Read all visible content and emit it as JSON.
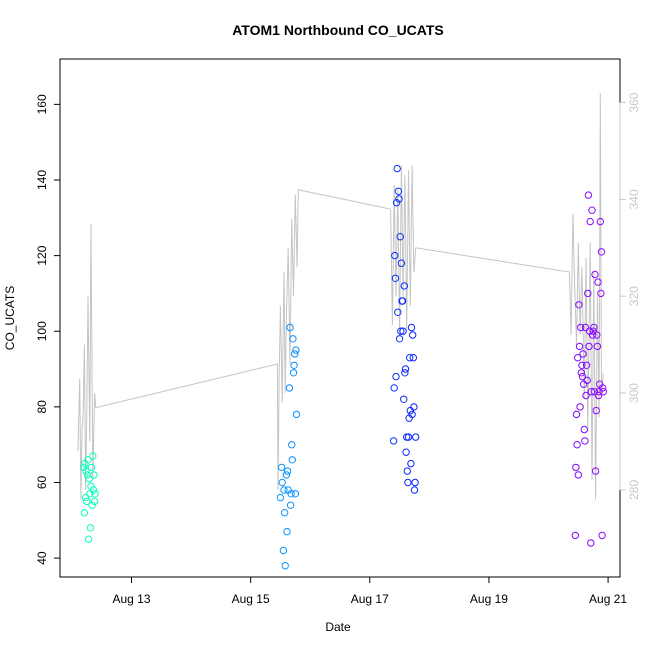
{
  "chart_data": {
    "type": "scatter",
    "title": "ATOM1 Northbound CO_UCATS",
    "xlabel": "Date",
    "ylabel": "CO_UCATS",
    "x_ticks": [
      "Aug 13",
      "Aug 15",
      "Aug 17",
      "Aug 19",
      "Aug 21"
    ],
    "x_tick_days": [
      13,
      15,
      17,
      19,
      21
    ],
    "xlim_days": [
      11.8,
      21.2
    ],
    "ylim": [
      35,
      172
    ],
    "y_ticks": [
      40,
      60,
      80,
      100,
      120,
      140,
      160
    ],
    "y2lim": [
      262,
      369
    ],
    "y2_ticks": [
      280,
      300,
      320,
      340,
      360
    ],
    "grid": false,
    "series": [
      {
        "type": "scatter",
        "axis": "left",
        "points": [
          [
            12.2,
            64
          ],
          [
            12.21,
            52
          ],
          [
            12.22,
            65
          ],
          [
            12.23,
            56
          ],
          [
            12.24,
            63
          ],
          [
            12.25,
            55
          ],
          [
            12.26,
            62
          ],
          [
            12.27,
            66
          ],
          [
            12.28,
            45
          ],
          [
            12.29,
            61
          ],
          [
            12.3,
            57
          ],
          [
            12.31,
            48
          ],
          [
            12.32,
            59
          ],
          [
            12.33,
            64
          ],
          [
            12.34,
            54
          ],
          [
            12.35,
            67
          ],
          [
            12.36,
            58
          ],
          [
            12.37,
            62
          ],
          [
            12.38,
            55
          ],
          [
            12.39,
            57
          ],
          [
            15.5,
            56
          ],
          [
            15.52,
            64
          ],
          [
            15.53,
            60
          ],
          [
            15.55,
            42
          ],
          [
            15.56,
            58
          ],
          [
            15.57,
            52
          ],
          [
            15.58,
            38
          ],
          [
            15.6,
            62
          ],
          [
            15.61,
            47
          ],
          [
            15.62,
            63
          ],
          [
            15.63,
            58
          ],
          [
            15.65,
            85
          ],
          [
            15.66,
            101
          ],
          [
            15.67,
            54
          ],
          [
            15.68,
            57
          ],
          [
            15.69,
            70
          ],
          [
            15.7,
            66
          ],
          [
            15.71,
            98
          ],
          [
            15.72,
            89
          ],
          [
            15.73,
            91
          ],
          [
            15.74,
            94
          ],
          [
            15.75,
            57
          ],
          [
            15.76,
            95
          ],
          [
            15.77,
            78
          ],
          [
            17.4,
            71
          ],
          [
            17.41,
            85
          ],
          [
            17.42,
            120
          ],
          [
            17.43,
            114
          ],
          [
            17.44,
            88
          ],
          [
            17.45,
            134
          ],
          [
            17.46,
            143
          ],
          [
            17.47,
            105
          ],
          [
            17.48,
            137
          ],
          [
            17.49,
            135
          ],
          [
            17.5,
            98
          ],
          [
            17.51,
            125
          ],
          [
            17.52,
            100
          ],
          [
            17.53,
            118
          ],
          [
            17.54,
            108
          ],
          [
            17.55,
            108
          ],
          [
            17.56,
            100
          ],
          [
            17.57,
            82
          ],
          [
            17.58,
            112
          ],
          [
            17.59,
            89
          ],
          [
            17.6,
            90
          ],
          [
            17.61,
            68
          ],
          [
            17.62,
            72
          ],
          [
            17.63,
            63
          ],
          [
            17.64,
            60
          ],
          [
            17.65,
            72
          ],
          [
            17.66,
            77
          ],
          [
            17.67,
            93
          ],
          [
            17.68,
            79
          ],
          [
            17.69,
            65
          ],
          [
            17.7,
            101
          ],
          [
            17.71,
            78
          ],
          [
            17.72,
            99
          ],
          [
            17.73,
            93
          ],
          [
            17.74,
            80
          ],
          [
            17.75,
            58
          ],
          [
            17.76,
            60
          ],
          [
            17.77,
            72
          ],
          [
            20.45,
            46
          ],
          [
            20.46,
            64
          ],
          [
            20.47,
            78
          ],
          [
            20.48,
            70
          ],
          [
            20.49,
            93
          ],
          [
            20.5,
            62
          ],
          [
            20.51,
            107
          ],
          [
            20.52,
            96
          ],
          [
            20.53,
            80
          ],
          [
            20.54,
            101
          ],
          [
            20.55,
            89
          ],
          [
            20.56,
            91
          ],
          [
            20.57,
            88
          ],
          [
            20.58,
            94
          ],
          [
            20.59,
            86
          ],
          [
            20.6,
            74
          ],
          [
            20.61,
            71
          ],
          [
            20.62,
            101
          ],
          [
            20.63,
            83
          ],
          [
            20.64,
            91
          ],
          [
            20.65,
            87
          ],
          [
            20.66,
            110
          ],
          [
            20.67,
            136
          ],
          [
            20.68,
            96
          ],
          [
            20.69,
            100
          ],
          [
            20.7,
            129
          ],
          [
            20.71,
            44
          ],
          [
            20.72,
            84
          ],
          [
            20.73,
            132
          ],
          [
            20.74,
            99
          ],
          [
            20.75,
            100
          ],
          [
            20.76,
            101
          ],
          [
            20.77,
            84
          ],
          [
            20.78,
            115
          ],
          [
            20.79,
            63
          ],
          [
            20.8,
            79
          ],
          [
            20.81,
            99
          ],
          [
            20.82,
            96
          ],
          [
            20.83,
            113
          ],
          [
            20.84,
            83
          ],
          [
            20.85,
            84
          ],
          [
            20.86,
            86
          ],
          [
            20.87,
            129
          ],
          [
            20.88,
            110
          ],
          [
            20.89,
            121
          ],
          [
            20.9,
            46
          ],
          [
            20.91,
            85
          ],
          [
            20.92,
            84
          ]
        ]
      },
      {
        "type": "line",
        "axis": "right",
        "points": [
          [
            12.1,
            288
          ],
          [
            12.13,
            303
          ],
          [
            12.15,
            278
          ],
          [
            12.17,
            292
          ],
          [
            12.19,
            296
          ],
          [
            12.21,
            310
          ],
          [
            12.23,
            280
          ],
          [
            12.25,
            296
          ],
          [
            12.27,
            320
          ],
          [
            12.3,
            290
          ],
          [
            12.32,
            335
          ],
          [
            12.35,
            282
          ],
          [
            12.38,
            300
          ],
          [
            12.4,
            297
          ],
          [
            15.45,
            306
          ],
          [
            15.46,
            280
          ],
          [
            15.48,
            304
          ],
          [
            15.5,
            318
          ],
          [
            15.53,
            298
          ],
          [
            15.56,
            325
          ],
          [
            15.58,
            300
          ],
          [
            15.6,
            316
          ],
          [
            15.63,
            330
          ],
          [
            15.66,
            306
          ],
          [
            15.69,
            336
          ],
          [
            15.72,
            320
          ],
          [
            15.75,
            341
          ],
          [
            15.78,
            326
          ],
          [
            15.8,
            342
          ],
          [
            17.35,
            338
          ],
          [
            17.38,
            314
          ],
          [
            17.41,
            343
          ],
          [
            17.44,
            320
          ],
          [
            17.47,
            342
          ],
          [
            17.5,
            312
          ],
          [
            17.53,
            347
          ],
          [
            17.56,
            320
          ],
          [
            17.59,
            345
          ],
          [
            17.62,
            313
          ],
          [
            17.65,
            346
          ],
          [
            17.68,
            318
          ],
          [
            17.71,
            347
          ],
          [
            17.74,
            325
          ],
          [
            17.77,
            330
          ],
          [
            20.35,
            325
          ],
          [
            20.38,
            312
          ],
          [
            20.41,
            337
          ],
          [
            20.44,
            322
          ],
          [
            20.47,
            310
          ],
          [
            20.5,
            331
          ],
          [
            20.53,
            312
          ],
          [
            20.56,
            326
          ],
          [
            20.6,
            299
          ],
          [
            20.63,
            328
          ],
          [
            20.66,
            292
          ],
          [
            20.7,
            331
          ],
          [
            20.73,
            282
          ],
          [
            20.76,
            325
          ],
          [
            20.79,
            278
          ],
          [
            20.82,
            320
          ],
          [
            20.85,
            295
          ],
          [
            20.87,
            362
          ],
          [
            20.89,
            300
          ],
          [
            20.92,
            304
          ]
        ]
      }
    ]
  }
}
